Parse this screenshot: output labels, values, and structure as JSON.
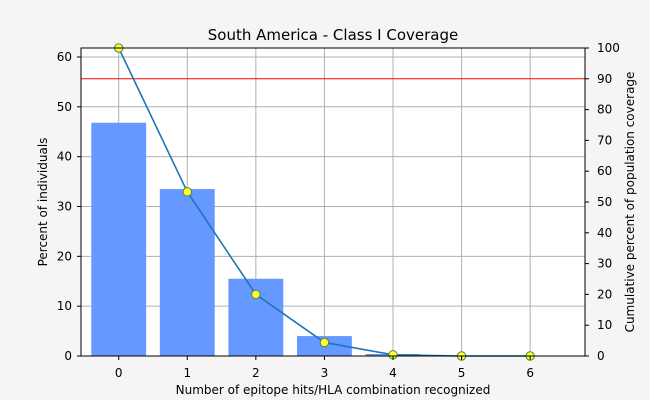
{
  "chart_data": {
    "type": "bar",
    "title": "South America - Class I Coverage",
    "xlabel": "Number of epitope hits/HLA combination recognized",
    "ylabel": "Percent of individuals",
    "y2label": "Cumulative percent of population coverage",
    "categories": [
      0,
      1,
      2,
      3,
      4,
      5,
      6
    ],
    "x_tick_labels": [
      "0",
      "1",
      "2",
      "3",
      "4",
      "5",
      "6"
    ],
    "xlim": [
      -0.55,
      6.8
    ],
    "ylim": [
      0,
      61.8
    ],
    "y_ticks": [
      0,
      10,
      20,
      30,
      40,
      50,
      60
    ],
    "y_tick_labels": [
      "0",
      "10",
      "20",
      "30",
      "40",
      "50",
      "60"
    ],
    "y2lim": [
      0,
      100
    ],
    "y2_ticks": [
      0,
      10,
      20,
      30,
      40,
      50,
      60,
      70,
      80,
      90,
      100
    ],
    "y2_tick_labels": [
      "0",
      "10",
      "20",
      "30",
      "40",
      "50",
      "60",
      "70",
      "80",
      "90",
      "100"
    ],
    "grid": true,
    "series": [
      {
        "kind": "bar",
        "axis": "left",
        "color": "#6699ff",
        "values": [
          46.8,
          33.5,
          15.5,
          4.0,
          0.4,
          0.0,
          0.0
        ]
      },
      {
        "kind": "line",
        "axis": "right",
        "color": "#1f77b4",
        "marker_face": "#ffff33",
        "marker_edge": "#4c8a3c",
        "values": [
          100,
          53.3,
          20.0,
          4.4,
          0.4,
          0.0,
          0.0
        ]
      }
    ],
    "reference_line": {
      "axis": "right",
      "value": 90,
      "color": "#ff0000"
    }
  }
}
